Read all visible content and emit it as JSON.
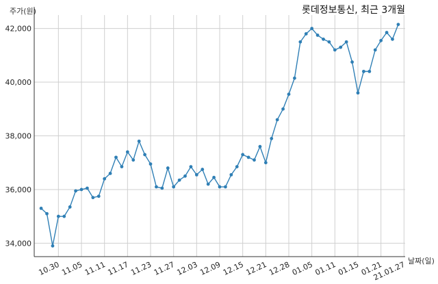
{
  "chart_data": {
    "type": "line",
    "title": "롯데정보통신, 최근 3개월",
    "ylabel": "주가(원)",
    "xlabel": "날짜(일)",
    "ylim": [
      33500,
      42500
    ],
    "yticks": [
      34000,
      36000,
      38000,
      40000,
      42000
    ],
    "ytick_labels": [
      "34,000",
      "36,000",
      "38,000",
      "40,000",
      "42,000"
    ],
    "xticks": [
      {
        "index": 3,
        "label": "10.30"
      },
      {
        "index": 7,
        "label": "11.05"
      },
      {
        "index": 11,
        "label": "11.11"
      },
      {
        "index": 15,
        "label": "11.17"
      },
      {
        "index": 19,
        "label": "11.23"
      },
      {
        "index": 23,
        "label": "11.27"
      },
      {
        "index": 27,
        "label": "12.03"
      },
      {
        "index": 31,
        "label": "12.09"
      },
      {
        "index": 35,
        "label": "12.15"
      },
      {
        "index": 39,
        "label": "12.21"
      },
      {
        "index": 43,
        "label": "12.28"
      },
      {
        "index": 47,
        "label": "01.05"
      },
      {
        "index": 51,
        "label": "01.11"
      },
      {
        "index": 55,
        "label": "01.15"
      },
      {
        "index": 59,
        "label": "01.21"
      },
      {
        "index": 63,
        "label": "21.01.27"
      }
    ],
    "grid": true,
    "color": "#2f7fb5",
    "series": [
      {
        "values": [
          35300,
          35100,
          33900,
          35000,
          35000,
          35350,
          35950,
          36000,
          36050,
          35700,
          35750,
          36400,
          36600,
          37200,
          36850,
          37400,
          37100,
          37800,
          37300,
          36950,
          36100,
          36050,
          36800,
          36100,
          36350,
          36500,
          36850,
          36550,
          36750,
          36200,
          36450,
          36100,
          36100,
          36550,
          36850,
          37300,
          37200,
          37100,
          37600,
          37000,
          37900,
          38600,
          39000,
          39550,
          40150,
          41500,
          41800,
          42000,
          41750,
          41600,
          41500,
          41200,
          41300,
          41500,
          40750,
          39600,
          40400,
          40400,
          41200,
          41550,
          41850,
          41600,
          42150
        ]
      }
    ]
  }
}
